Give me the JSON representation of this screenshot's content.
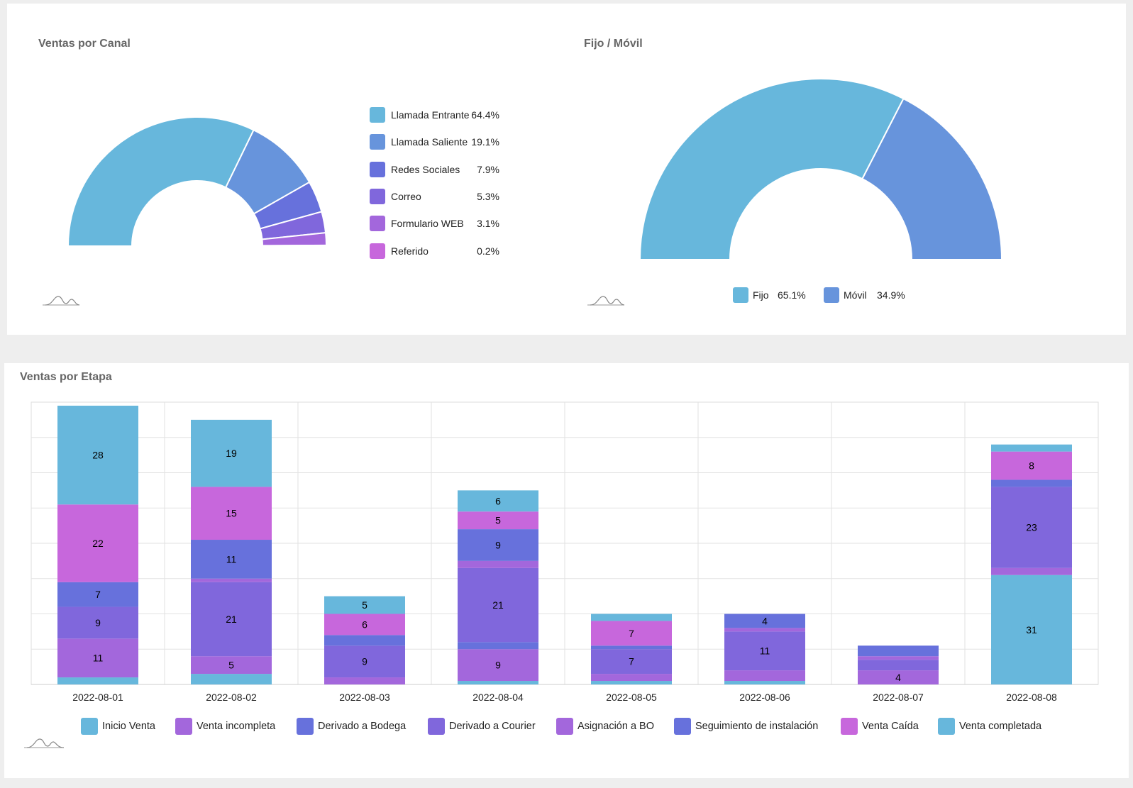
{
  "chart_data": [
    {
      "type": "pie",
      "title": "Ventas por Canal",
      "variant": "semi-donut",
      "labels": [
        "Llamada Entrante",
        "Llamada Saliente",
        "Redes Sociales",
        "Correo",
        "Formulario WEB",
        "Referido"
      ],
      "values": [
        64.4,
        19.1,
        7.9,
        5.3,
        3.1,
        0.2
      ],
      "display_values": [
        "64.4%",
        "19.1%",
        "7.9%",
        "5.3%",
        "3.1%",
        "0.2%"
      ],
      "colors": [
        "#67b7dc",
        "#6794dc",
        "#6771dc",
        "#8067dc",
        "#a367dc",
        "#c767dc"
      ],
      "legend": "right"
    },
    {
      "type": "pie",
      "title": "Fijo / Móvil",
      "variant": "semi-donut",
      "labels": [
        "Fijo",
        "Móvil"
      ],
      "values": [
        65.1,
        34.9
      ],
      "display_values": [
        "65.1%",
        "34.9%"
      ],
      "colors": [
        "#67b7dc",
        "#6794dc"
      ],
      "legend": "bottom"
    },
    {
      "type": "bar",
      "stacked": true,
      "title": "Ventas por Etapa",
      "categories": [
        "2022-08-01",
        "2022-08-02",
        "2022-08-03",
        "2022-08-04",
        "2022-08-05",
        "2022-08-06",
        "2022-08-07",
        "2022-08-08"
      ],
      "ylim": [
        0,
        80
      ],
      "series": [
        {
          "name": "Inicio Venta",
          "color": "#67b7dc",
          "values": [
            2,
            3,
            0,
            1,
            1,
            1,
            0,
            31
          ]
        },
        {
          "name": "Venta incompleta",
          "color": "#a367dc",
          "values": [
            11,
            5,
            2,
            9,
            2,
            3,
            4,
            2
          ]
        },
        {
          "name": "Derivado a Bodega",
          "color": "#6771dc",
          "values": [
            0,
            0,
            0,
            2,
            0,
            0,
            0,
            0
          ]
        },
        {
          "name": "Derivado a Courier",
          "color": "#8067dc",
          "values": [
            9,
            21,
            9,
            21,
            7,
            11,
            3,
            23
          ]
        },
        {
          "name": "Asignación a BO",
          "color": "#a367dc",
          "values": [
            0,
            1,
            0,
            2,
            0,
            1,
            1,
            0
          ]
        },
        {
          "name": "Seguimiento de instalación",
          "color": "#6771dc",
          "values": [
            7,
            11,
            3,
            9,
            1,
            4,
            3,
            2
          ]
        },
        {
          "name": "Venta Caída",
          "color": "#c767dc",
          "values": [
            22,
            15,
            6,
            5,
            7,
            0,
            0,
            8
          ]
        },
        {
          "name": "Venta completada",
          "color": "#67b7dc",
          "values": [
            28,
            19,
            5,
            6,
            2,
            0,
            0,
            2
          ]
        }
      ]
    }
  ]
}
